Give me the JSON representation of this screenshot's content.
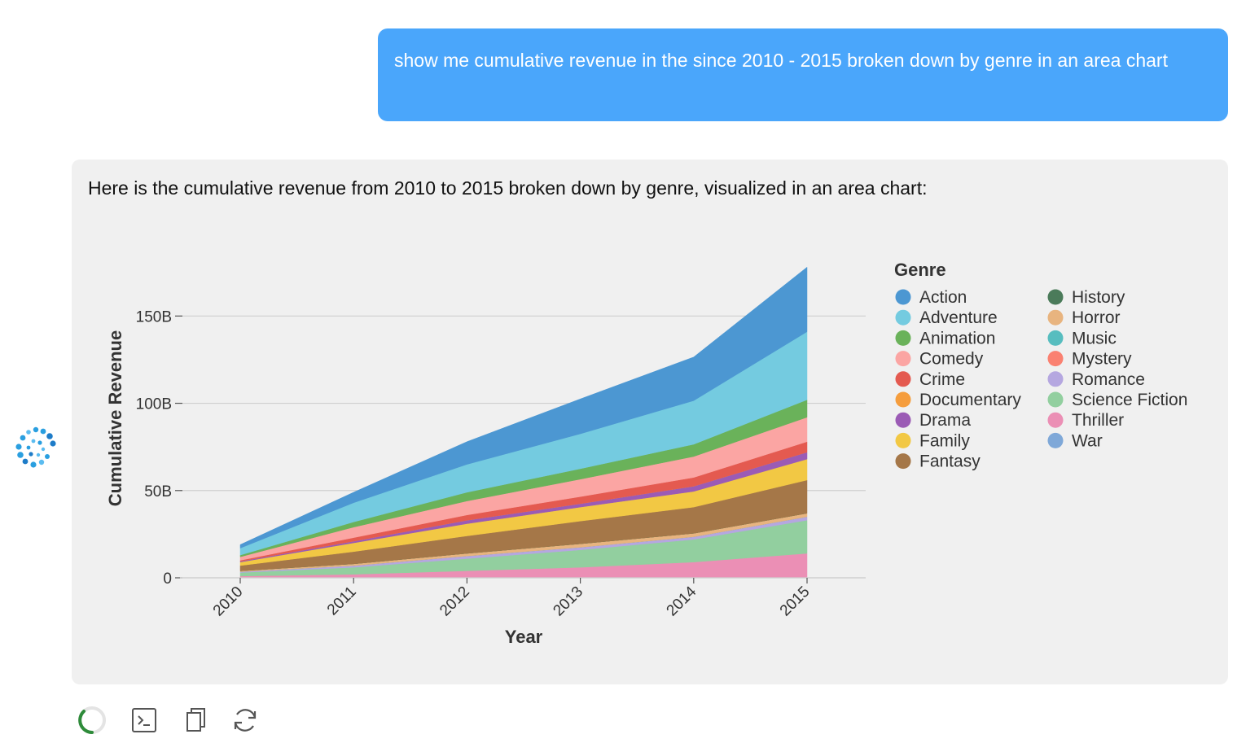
{
  "user_message": "show me cumulative revenue in the since 2010 - 2015 broken down by genre in an area chart",
  "assistant_message": "Here is the cumulative revenue from 2010 to 2015 broken down by genre, visualized in an area chart:",
  "icons": {
    "avatar": "bot-avatar-icon",
    "spinner": "loading-spinner-icon",
    "terminal": "terminal-icon",
    "copy": "copy-icon",
    "refresh": "refresh-icon"
  },
  "chart_data": {
    "type": "area",
    "stacked": true,
    "title": "",
    "xlabel": "Year",
    "ylabel": "Cumulative Revenue",
    "legend_title": "Genre",
    "legend_position": "right",
    "x": [
      "2010",
      "2011",
      "2012",
      "2013",
      "2014",
      "2015"
    ],
    "ylim": [
      0,
      180
    ],
    "yticks": [
      0,
      50,
      100,
      150
    ],
    "ytick_labels": [
      "0",
      "50B",
      "100B",
      "150B"
    ],
    "units": "billions",
    "grid": true,
    "stack_order": [
      "War",
      "Thriller",
      "Science Fiction",
      "Romance",
      "Mystery",
      "Music",
      "Horror",
      "History",
      "Fantasy",
      "Family",
      "Drama",
      "Documentary",
      "Crime",
      "Comedy",
      "Animation",
      "Adventure",
      "Action"
    ],
    "series": [
      {
        "name": "Action",
        "color": "#4c97d2",
        "values": [
          2,
          6,
          13,
          20,
          25,
          37
        ]
      },
      {
        "name": "Adventure",
        "color": "#74cbe0",
        "values": [
          4,
          11,
          16,
          20,
          25,
          39
        ]
      },
      {
        "name": "Animation",
        "color": "#6ab25a",
        "values": [
          1,
          3,
          5,
          6,
          7,
          10
        ]
      },
      {
        "name": "Comedy",
        "color": "#fba5a3",
        "values": [
          2,
          6,
          8,
          10,
          12,
          14
        ]
      },
      {
        "name": "Crime",
        "color": "#e45a50",
        "values": [
          0.5,
          2,
          3,
          4,
          5,
          6
        ]
      },
      {
        "name": "Documentary",
        "color": "#f59d3d",
        "values": [
          0,
          0,
          0,
          0,
          0,
          0
        ]
      },
      {
        "name": "Drama",
        "color": "#9b5bb5",
        "values": [
          0.5,
          1,
          2,
          2,
          3,
          4
        ]
      },
      {
        "name": "Family",
        "color": "#f2c844",
        "values": [
          2,
          5,
          7,
          8,
          9,
          12
        ]
      },
      {
        "name": "Fantasy",
        "color": "#a57748",
        "values": [
          3,
          7,
          10,
          13,
          15,
          19
        ]
      },
      {
        "name": "History",
        "color": "#4b7b5a",
        "values": [
          0,
          0,
          0,
          0,
          0,
          0
        ]
      },
      {
        "name": "Horror",
        "color": "#e8b47f",
        "values": [
          0.5,
          1,
          1.5,
          2,
          2,
          2
        ]
      },
      {
        "name": "Music",
        "color": "#57bdbf",
        "values": [
          0,
          0,
          0,
          0,
          0,
          0
        ]
      },
      {
        "name": "Mystery",
        "color": "#fa8171",
        "values": [
          0,
          0,
          0,
          0,
          0,
          0
        ]
      },
      {
        "name": "Romance",
        "color": "#b5a7e0",
        "values": [
          0.5,
          1,
          1.5,
          1.5,
          1.5,
          2
        ]
      },
      {
        "name": "Science Fiction",
        "color": "#92cf9f",
        "values": [
          2,
          4,
          7,
          10,
          13,
          19
        ]
      },
      {
        "name": "Thriller",
        "color": "#eb8fb5",
        "values": [
          1,
          2,
          4,
          6,
          9,
          14
        ]
      },
      {
        "name": "War",
        "color": "#7fa8d8",
        "values": [
          0,
          0,
          0,
          0,
          0,
          0
        ]
      }
    ]
  }
}
